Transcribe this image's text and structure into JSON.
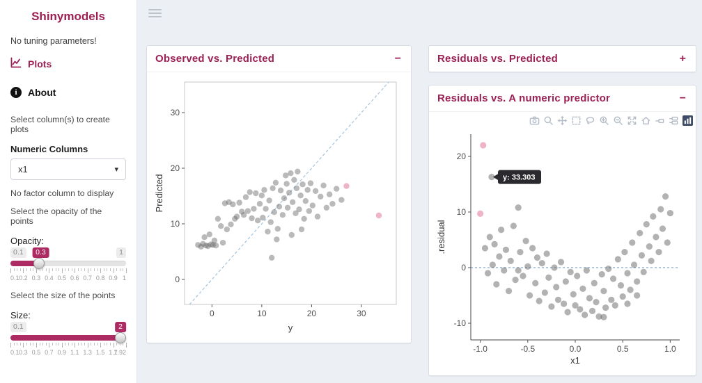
{
  "app": {
    "title": "Shinymodels"
  },
  "colors": {
    "accent": "#9b2155",
    "slider": "#ad2a63",
    "main_bg": "#ecf0f5",
    "point_gray": "#666666",
    "highlight_pink": "#eba6bd",
    "dashed_blue": "#a3c4de",
    "plotly_logo_navy": "#3e4c66",
    "tooltip_bg": "#2a2a2e"
  },
  "sidebar": {
    "title": "Shinymodels",
    "no_tuning": "No tuning parameters!",
    "nav": [
      {
        "label": "Plots",
        "icon": "chart-line-icon"
      },
      {
        "label": "About",
        "icon": "info-circle-icon"
      }
    ],
    "select_columns_hint": "Select column(s) to create plots",
    "numeric_columns_label": "Numeric Columns",
    "numeric_columns_value": "x1",
    "no_factor_hint": "No factor column to display",
    "opacity_hint": "Select the opacity of the points",
    "opacity": {
      "label": "Opacity:",
      "min": "0.1",
      "max": "1",
      "value": "0.3",
      "percent": 22,
      "grid": [
        "0.1",
        "0.2",
        "0.3",
        "0.4",
        "0.5",
        "0.6",
        "0.7",
        "0.8",
        "0.9",
        "1"
      ]
    },
    "size_hint": "Select the size of the points",
    "size": {
      "label": "Size:",
      "min": "0.1",
      "max": "",
      "value": "2",
      "percent": 100,
      "grid": [
        "0.1",
        "0.3",
        "0.5",
        "0.7",
        "0.9",
        "1.1",
        "1.3",
        "1.5",
        "1.7",
        "1.92"
      ]
    }
  },
  "panels": [
    {
      "title": "Observed vs. Predicted",
      "collapse": "−"
    },
    {
      "title": "Residuals vs. Predicted",
      "collapse": "+"
    },
    {
      "title": "Residuals vs. A numeric predictor",
      "collapse": "−"
    }
  ],
  "modebar": {
    "icons": [
      "camera",
      "zoom",
      "pan",
      "box-select",
      "lasso",
      "zoom-in",
      "zoom-out",
      "autoscale",
      "reset-axes",
      "show-closest",
      "compare-hover",
      "plotly-logo"
    ]
  },
  "chart_data": [
    {
      "type": "scatter",
      "title": "Observed vs. Predicted",
      "xlabel": "y",
      "ylabel": "Predicted",
      "xlim": [
        -5.5,
        37
      ],
      "ylim": [
        -4.5,
        35.5
      ],
      "xticks": [
        [
          0,
          "0"
        ],
        [
          10,
          "10"
        ],
        [
          20,
          "20"
        ],
        [
          30,
          "30"
        ]
      ],
      "yticks": [
        [
          0,
          "0"
        ],
        [
          10,
          "10"
        ],
        [
          20,
          "20"
        ],
        [
          30,
          "30"
        ]
      ],
      "diagonal_line": true,
      "line_style": "dashed",
      "line_color": "#a3c4de",
      "point_color": "#666666",
      "point_opacity": 0.45,
      "highlight_color": "#eba6bd",
      "grid": false,
      "points": [
        [
          -2.8,
          6.2
        ],
        [
          -2.2,
          5.9
        ],
        [
          -1.8,
          6.4
        ],
        [
          -1.5,
          7.6
        ],
        [
          -1.2,
          6.1
        ],
        [
          -0.8,
          6.0
        ],
        [
          -0.5,
          8.1
        ],
        [
          -0.2,
          6.3
        ],
        [
          0.2,
          6.2
        ],
        [
          0.5,
          7.0
        ],
        [
          0.8,
          6.1
        ],
        [
          1.2,
          10.9
        ],
        [
          1.8,
          9.6
        ],
        [
          2.2,
          6.6
        ],
        [
          2.6,
          13.7
        ],
        [
          3.0,
          9.0
        ],
        [
          3.4,
          13.9
        ],
        [
          3.8,
          9.9
        ],
        [
          4.2,
          13.5
        ],
        [
          4.6,
          10.9
        ],
        [
          5.0,
          11.3
        ],
        [
          5.5,
          13.8
        ],
        [
          6.0,
          12.2
        ],
        [
          6.4,
          11.6
        ],
        [
          6.8,
          14.8
        ],
        [
          7.2,
          12.3
        ],
        [
          7.6,
          15.7
        ],
        [
          8.0,
          11.0
        ],
        [
          8.4,
          12.7
        ],
        [
          8.8,
          15.5
        ],
        [
          9.2,
          10.6
        ],
        [
          9.6,
          13.6
        ],
        [
          10.0,
          15.1
        ],
        [
          10.2,
          11.1
        ],
        [
          10.5,
          16.1
        ],
        [
          10.8,
          12.7
        ],
        [
          11.2,
          8.6
        ],
        [
          11.5,
          14.2
        ],
        [
          11.8,
          10.3
        ],
        [
          12.0,
          3.9
        ],
        [
          12.2,
          16.4
        ],
        [
          12.5,
          12.1
        ],
        [
          12.8,
          17.4
        ],
        [
          13.0,
          7.2
        ],
        [
          13.2,
          9.1
        ],
        [
          13.5,
          13.1
        ],
        [
          13.8,
          16.0
        ],
        [
          14.2,
          11.6
        ],
        [
          14.5,
          14.6
        ],
        [
          14.8,
          18.7
        ],
        [
          15.0,
          17.2
        ],
        [
          15.2,
          12.9
        ],
        [
          15.5,
          15.6
        ],
        [
          15.8,
          19.1
        ],
        [
          16.0,
          8.0
        ],
        [
          16.2,
          13.9
        ],
        [
          16.5,
          17.9
        ],
        [
          16.8,
          11.9
        ],
        [
          17.0,
          16.4
        ],
        [
          17.2,
          19.4
        ],
        [
          17.5,
          12.6
        ],
        [
          17.8,
          15.1
        ],
        [
          18.0,
          9.0
        ],
        [
          18.2,
          17.1
        ],
        [
          18.5,
          10.9
        ],
        [
          18.8,
          14.1
        ],
        [
          19.2,
          16.1
        ],
        [
          19.5,
          12.3
        ],
        [
          19.8,
          17.3
        ],
        [
          20.2,
          13.3
        ],
        [
          20.8,
          15.9
        ],
        [
          21.2,
          11.3
        ],
        [
          21.8,
          14.9
        ],
        [
          22.4,
          16.9
        ],
        [
          23.0,
          12.9
        ],
        [
          23.6,
          15.3
        ],
        [
          24.2,
          13.6
        ],
        [
          25.0,
          16.3
        ],
        [
          26.0,
          14.3
        ]
      ],
      "highlight_points": [
        [
          27.0,
          16.8
        ],
        [
          33.5,
          11.5
        ]
      ]
    },
    {
      "type": "scatter",
      "title": "Residuals vs. A numeric predictor",
      "xlabel": "x1",
      "ylabel": ".residual",
      "xlim": [
        -1.1,
        1.1
      ],
      "ylim": [
        -13,
        24
      ],
      "xticks": [
        [
          -1,
          "-1.0"
        ],
        [
          -0.5,
          "-0.5"
        ],
        [
          0,
          "0.0"
        ],
        [
          0.5,
          "0.5"
        ],
        [
          1,
          "1.0"
        ]
      ],
      "yticks": [
        [
          -10,
          "-10"
        ],
        [
          0,
          "0"
        ],
        [
          10,
          "10"
        ],
        [
          20,
          "20"
        ]
      ],
      "hline": 0,
      "line_style": "dashed",
      "line_color": "#7fa8cc",
      "point_color": "#666666",
      "point_opacity": 0.5,
      "highlight_color": "#eba6bd",
      "grid": false,
      "tooltip": {
        "text": "y: 33.303",
        "x": -0.88,
        "y": 16.3
      },
      "points": [
        [
          -0.95,
          3.5
        ],
        [
          -0.92,
          -1.0
        ],
        [
          -0.9,
          5.5
        ],
        [
          -0.88,
          16.3
        ],
        [
          -0.87,
          0.5
        ],
        [
          -0.85,
          4.2
        ],
        [
          -0.83,
          -3.0
        ],
        [
          -0.8,
          2.0
        ],
        [
          -0.78,
          6.8
        ],
        [
          -0.75,
          -0.5
        ],
        [
          -0.73,
          3.2
        ],
        [
          -0.7,
          -4.2
        ],
        [
          -0.68,
          1.2
        ],
        [
          -0.65,
          7.5
        ],
        [
          -0.63,
          -2.2
        ],
        [
          -0.6,
          10.8
        ],
        [
          -0.6,
          -0.5
        ],
        [
          -0.58,
          2.8
        ],
        [
          -0.55,
          -1.5
        ],
        [
          -0.52,
          4.8
        ],
        [
          -0.5,
          0.2
        ],
        [
          -0.48,
          -5.0
        ],
        [
          -0.45,
          3.5
        ],
        [
          -0.42,
          -2.8
        ],
        [
          -0.4,
          1.8
        ],
        [
          -0.38,
          -6.0
        ],
        [
          -0.35,
          0.8
        ],
        [
          -0.32,
          -4.5
        ],
        [
          -0.3,
          2.5
        ],
        [
          -0.28,
          -1.8
        ],
        [
          -0.25,
          -7.0
        ],
        [
          -0.22,
          0.0
        ],
        [
          -0.2,
          -3.5
        ],
        [
          -0.18,
          -5.8
        ],
        [
          -0.15,
          1.0
        ],
        [
          -0.12,
          -6.5
        ],
        [
          -0.1,
          -2.5
        ],
        [
          -0.08,
          -8.0
        ],
        [
          -0.05,
          -0.8
        ],
        [
          -0.02,
          -4.8
        ],
        [
          0.0,
          -6.8
        ],
        [
          0.02,
          -1.5
        ],
        [
          0.05,
          -7.5
        ],
        [
          0.08,
          -3.8
        ],
        [
          0.1,
          -8.5
        ],
        [
          0.12,
          -0.5
        ],
        [
          0.15,
          -5.5
        ],
        [
          0.18,
          -7.8
        ],
        [
          0.2,
          -2.8
        ],
        [
          0.22,
          -6.2
        ],
        [
          0.25,
          -8.8
        ],
        [
          0.28,
          -1.2
        ],
        [
          0.3,
          -4.2
        ],
        [
          0.3,
          -8.9
        ],
        [
          0.32,
          -7.2
        ],
        [
          0.35,
          -0.2
        ],
        [
          0.38,
          -5.8
        ],
        [
          0.4,
          -2.0
        ],
        [
          0.42,
          -6.8
        ],
        [
          0.45,
          1.5
        ],
        [
          0.48,
          -3.2
        ],
        [
          0.5,
          -5.2
        ],
        [
          0.52,
          2.8
        ],
        [
          0.55,
          -1.0
        ],
        [
          0.55,
          -6.5
        ],
        [
          0.58,
          -4.0
        ],
        [
          0.6,
          4.5
        ],
        [
          0.62,
          0.5
        ],
        [
          0.65,
          -2.5
        ],
        [
          0.65,
          -5.0
        ],
        [
          0.68,
          6.2
        ],
        [
          0.7,
          2.2
        ],
        [
          0.72,
          -0.8
        ],
        [
          0.75,
          7.8
        ],
        [
          0.78,
          3.8
        ],
        [
          0.8,
          1.2
        ],
        [
          0.82,
          9.2
        ],
        [
          0.85,
          5.5
        ],
        [
          0.88,
          2.8
        ],
        [
          0.9,
          10.5
        ],
        [
          0.92,
          7.0
        ],
        [
          0.95,
          12.8
        ],
        [
          0.97,
          4.5
        ],
        [
          1.0,
          9.8
        ]
      ],
      "highlight_points": [
        [
          -0.97,
          22.0
        ],
        [
          -1.0,
          9.7
        ]
      ]
    }
  ]
}
